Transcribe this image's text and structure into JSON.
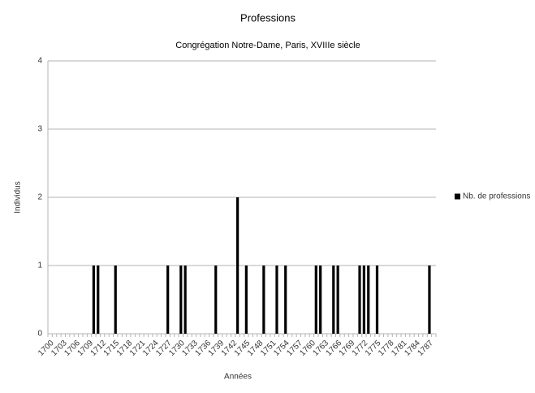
{
  "chart_data": {
    "type": "bar",
    "title": "Professions",
    "subtitle": "Congrégation Notre-Dame, Paris, XVIIIe siècle",
    "x_label": "Années",
    "y_label": "Individus",
    "categories": [
      "1700",
      null,
      null,
      "1703",
      null,
      null,
      "1706",
      null,
      null,
      "1709",
      null,
      null,
      "1712",
      null,
      null,
      "1715",
      null,
      null,
      "1718",
      null,
      null,
      "1721",
      null,
      null,
      "1724",
      null,
      null,
      "1727",
      null,
      null,
      "1730",
      null,
      null,
      "1733",
      null,
      null,
      "1736",
      null,
      null,
      "1739",
      null,
      null,
      "1742",
      null,
      null,
      "1745",
      null,
      null,
      "1748",
      null,
      null,
      "1751",
      null,
      null,
      "1754",
      null,
      null,
      "1757",
      null,
      null,
      "1760",
      null,
      null,
      "1763",
      null,
      null,
      "1766",
      null,
      null,
      "1769",
      null,
      null,
      "1772",
      null,
      null,
      "1775",
      null,
      null,
      "1778",
      null,
      null,
      "1781",
      null,
      null,
      "1784",
      null,
      null,
      "1787",
      null
    ],
    "series": [
      {
        "name": "Nb. de professions",
        "color": "#000000",
        "values": [
          0,
          0,
          0,
          0,
          0,
          0,
          0,
          0,
          0,
          0,
          1,
          1,
          0,
          0,
          0,
          1,
          0,
          0,
          0,
          0,
          0,
          0,
          0,
          0,
          0,
          0,
          0,
          1,
          0,
          0,
          1,
          1,
          0,
          0,
          0,
          0,
          0,
          0,
          1,
          0,
          0,
          0,
          0,
          2,
          0,
          1,
          0,
          0,
          0,
          1,
          0,
          0,
          1,
          0,
          1,
          0,
          0,
          0,
          0,
          0,
          0,
          1,
          1,
          0,
          0,
          1,
          1,
          0,
          0,
          0,
          0,
          1,
          1,
          1,
          0,
          1,
          0,
          0,
          0,
          0,
          0,
          0,
          0,
          0,
          0,
          0,
          0,
          1,
          0
        ]
      }
    ],
    "ylim": [
      0,
      4
    ],
    "yticks": [
      0,
      1,
      2,
      3,
      4
    ],
    "grid": true,
    "legend": "right"
  }
}
